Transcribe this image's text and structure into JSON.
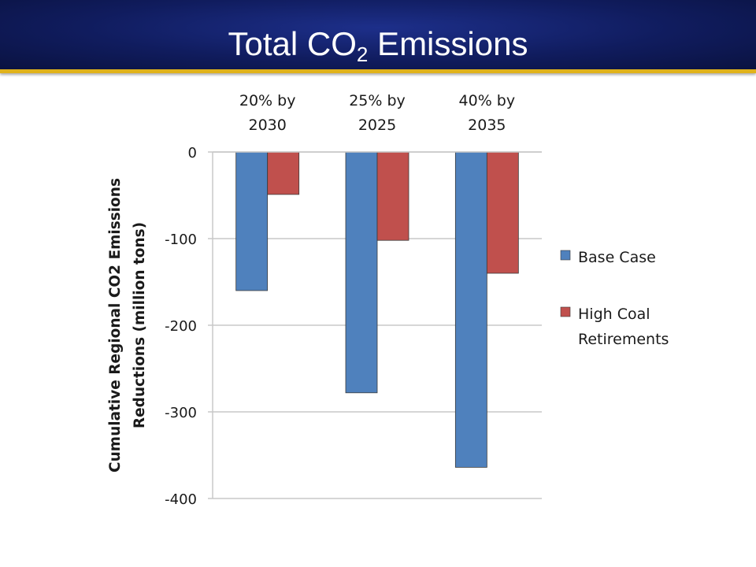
{
  "slide": {
    "title_main": "Total CO",
    "title_sub": "2",
    "title_rest": " Emissions"
  },
  "colors": {
    "header_bg": "#101c5e",
    "header_rule": "#e0b21b",
    "grid": "#c8c8c8"
  },
  "chart_data": {
    "type": "bar",
    "title": "",
    "ylabel": "Cumulative Regional CO2 Emissions Reductions (million tons)",
    "ylabel_lines": [
      "Cumulative Regional CO2 Emissions",
      "Reductions (million tons)"
    ],
    "categories": [
      "20% by 2030",
      "25% by 2025",
      "40% by 2035"
    ],
    "category_lines": [
      [
        "20% by",
        "2030"
      ],
      [
        "25% by",
        "2025"
      ],
      [
        "40% by",
        "2035"
      ]
    ],
    "ylim": [
      -400,
      0
    ],
    "yticks": [
      0,
      -100,
      -200,
      -300,
      -400
    ],
    "ytick_labels": [
      "0",
      "-100",
      "-200",
      "-300",
      "-400"
    ],
    "grid": true,
    "legend_position": "right",
    "series": [
      {
        "name": "Base Case",
        "name_lines": [
          "Base Case"
        ],
        "color": "#4f81bd",
        "values": [
          -160,
          -278,
          -364
        ]
      },
      {
        "name": "High Coal Retirements",
        "name_lines": [
          "High Coal",
          "Retirements"
        ],
        "color": "#c0504d",
        "values": [
          -49,
          -102,
          -140
        ]
      }
    ]
  }
}
